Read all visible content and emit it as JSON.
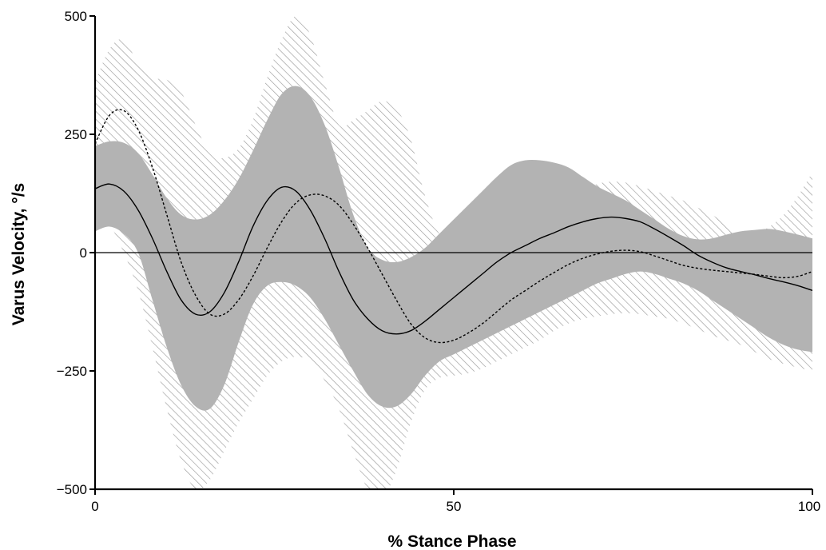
{
  "chart_data": {
    "type": "line",
    "title": "",
    "xlabel": "% Stance Phase",
    "ylabel": "Varus Velocity, °/s",
    "xlim": [
      0,
      100
    ],
    "ylim": [
      -500,
      500
    ],
    "x_ticks": [
      0,
      50,
      100
    ],
    "y_ticks": [
      500,
      250,
      0,
      -250,
      -500
    ],
    "x_tick_labels": [
      "0",
      "50",
      "100"
    ],
    "y_tick_labels": [
      "500",
      "250",
      "0",
      "−250",
      "−500"
    ],
    "grid": false,
    "legend": "none",
    "zero_line": true,
    "series": [
      {
        "style": "solid",
        "color": "#000000",
        "x": [
          0,
          2,
          4,
          6,
          8,
          10,
          12,
          14,
          16,
          18,
          20,
          22,
          24,
          26,
          28,
          30,
          32,
          34,
          36,
          38,
          40,
          42,
          44,
          46,
          48,
          50,
          52,
          54,
          56,
          58,
          60,
          62,
          64,
          66,
          68,
          70,
          72,
          74,
          76,
          78,
          80,
          82,
          84,
          86,
          88,
          90,
          92,
          94,
          96,
          98,
          100
        ],
        "values": [
          135,
          145,
          130,
          90,
          30,
          -40,
          -100,
          -130,
          -125,
          -85,
          -20,
          55,
          110,
          138,
          130,
          90,
          30,
          -40,
          -100,
          -140,
          -165,
          -172,
          -165,
          -145,
          -120,
          -95,
          -70,
          -45,
          -20,
          0,
          15,
          30,
          42,
          55,
          65,
          72,
          75,
          72,
          65,
          50,
          33,
          15,
          -5,
          -20,
          -32,
          -40,
          -47,
          -55,
          -62,
          -70,
          -80
        ]
      },
      {
        "style": "dotted",
        "color": "#000000",
        "x": [
          0,
          2,
          4,
          6,
          8,
          10,
          12,
          14,
          16,
          18,
          20,
          22,
          24,
          26,
          28,
          30,
          32,
          34,
          36,
          38,
          40,
          42,
          44,
          46,
          48,
          50,
          52,
          54,
          56,
          58,
          60,
          62,
          64,
          66,
          68,
          70,
          72,
          74,
          76,
          78,
          80,
          82,
          84,
          86,
          88,
          90,
          92,
          94,
          96,
          98,
          100
        ],
        "values": [
          230,
          290,
          300,
          260,
          180,
          80,
          -20,
          -90,
          -130,
          -130,
          -100,
          -50,
          10,
          65,
          105,
          122,
          120,
          100,
          60,
          10,
          -45,
          -100,
          -150,
          -180,
          -190,
          -185,
          -170,
          -150,
          -125,
          -100,
          -80,
          -60,
          -42,
          -25,
          -12,
          -3,
          3,
          5,
          2,
          -7,
          -17,
          -27,
          -33,
          -37,
          -40,
          -43,
          -46,
          -50,
          -53,
          -50,
          -40
        ]
      }
    ],
    "bands": [
      {
        "style": "solid-gray",
        "color": "#b3b3b3",
        "x": [
          0,
          2,
          4,
          6,
          8,
          10,
          12,
          14,
          16,
          18,
          20,
          22,
          24,
          26,
          28,
          30,
          32,
          34,
          36,
          38,
          40,
          42,
          44,
          46,
          48,
          50,
          52,
          54,
          56,
          58,
          60,
          62,
          64,
          66,
          68,
          70,
          72,
          74,
          76,
          78,
          80,
          82,
          84,
          86,
          88,
          90,
          92,
          94,
          96,
          98,
          100
        ],
        "upper": [
          225,
          235,
          232,
          210,
          165,
          115,
          80,
          70,
          80,
          110,
          155,
          215,
          280,
          335,
          352,
          330,
          270,
          180,
          80,
          10,
          -15,
          -20,
          -10,
          10,
          40,
          70,
          100,
          130,
          160,
          185,
          195,
          195,
          190,
          180,
          160,
          140,
          125,
          110,
          90,
          70,
          50,
          35,
          28,
          30,
          38,
          45,
          48,
          50,
          45,
          38,
          30
        ],
        "lower": [
          45,
          55,
          40,
          0,
          -100,
          -200,
          -280,
          -325,
          -330,
          -280,
          -190,
          -110,
          -70,
          -62,
          -70,
          -95,
          -140,
          -195,
          -250,
          -300,
          -325,
          -325,
          -300,
          -260,
          -230,
          -215,
          -200,
          -185,
          -170,
          -155,
          -140,
          -125,
          -110,
          -95,
          -80,
          -65,
          -55,
          -45,
          -40,
          -45,
          -55,
          -65,
          -80,
          -100,
          -120,
          -140,
          -160,
          -180,
          -195,
          -205,
          -210
        ]
      },
      {
        "style": "hatched",
        "color": "#999999",
        "x": [
          0,
          2,
          4,
          6,
          8,
          10,
          12,
          14,
          16,
          18,
          20,
          22,
          24,
          26,
          28,
          30,
          32,
          34,
          36,
          38,
          40,
          42,
          44,
          46,
          48,
          50,
          52,
          54,
          56,
          58,
          60,
          62,
          64,
          66,
          68,
          70,
          72,
          74,
          76,
          78,
          80,
          82,
          84,
          86,
          88,
          90,
          92,
          94,
          96,
          98,
          100
        ],
        "upper": [
          360,
          430,
          450,
          400,
          370,
          365,
          340,
          270,
          210,
          200,
          220,
          280,
          370,
          450,
          500,
          460,
          360,
          270,
          280,
          300,
          320,
          305,
          240,
          120,
          40,
          30,
          55,
          80,
          105,
          125,
          140,
          140,
          135,
          125,
          130,
          145,
          150,
          148,
          140,
          130,
          120,
          110,
          95,
          80,
          60,
          40,
          40,
          55,
          80,
          120,
          170
        ],
        "lower": [
          90,
          60,
          0,
          -80,
          -200,
          -330,
          -440,
          -500,
          -480,
          -420,
          -360,
          -310,
          -260,
          -230,
          -220,
          -230,
          -270,
          -330,
          -420,
          -500,
          -520,
          -460,
          -360,
          -290,
          -265,
          -260,
          -255,
          -245,
          -230,
          -215,
          -200,
          -185,
          -165,
          -150,
          -140,
          -135,
          -130,
          -128,
          -130,
          -135,
          -140,
          -150,
          -162,
          -175,
          -185,
          -195,
          -210,
          -225,
          -235,
          -243,
          -250
        ]
      }
    ]
  }
}
